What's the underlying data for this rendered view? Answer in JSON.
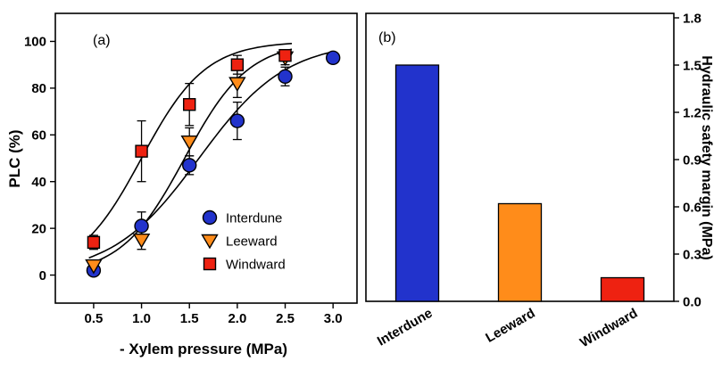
{
  "figure": {
    "background": "#ffffff"
  },
  "chart_data": [
    {
      "type": "scatter",
      "panel": "a",
      "panel_label": "(a)",
      "xlabel": "- Xylem pressure (MPa)",
      "ylabel": "PLC (%)",
      "xlim": [
        0.1,
        3.25
      ],
      "ylim": [
        -12,
        112
      ],
      "xticks": {
        "values": [
          0.5,
          1.0,
          1.5,
          2.0,
          2.5,
          3.0
        ],
        "labels": [
          "0.5",
          "1.0",
          "1.5",
          "2.0",
          "2.5",
          "3.0"
        ]
      },
      "yticks": {
        "values": [
          0,
          20,
          40,
          60,
          80,
          100
        ],
        "labels": [
          "0",
          "20",
          "40",
          "60",
          "80",
          "100"
        ]
      },
      "series": [
        {
          "name": "Interdune",
          "marker": "circle",
          "color": "#2233cc",
          "x": [
            0.5,
            1.0,
            1.5,
            2.0,
            2.5,
            3.0
          ],
          "y": [
            2,
            21,
            47,
            66,
            85,
            93
          ],
          "yerr": [
            2,
            6,
            4,
            8,
            4,
            2
          ],
          "fit": {
            "x0": 1.6,
            "k": 2.2,
            "xmin": 0.45,
            "xmax": 3.0
          }
        },
        {
          "name": "Leeward",
          "marker": "triangle-down",
          "color": "#ff8c1a",
          "x": [
            0.5,
            1.0,
            1.5,
            2.0,
            2.5
          ],
          "y": [
            4,
            15,
            57,
            82,
            93
          ],
          "yerr": [
            2,
            4,
            6,
            6,
            3
          ],
          "fit": {
            "x0": 1.45,
            "k": 3.0,
            "xmin": 0.45,
            "xmax": 2.6
          }
        },
        {
          "name": "Windward",
          "marker": "square",
          "color": "#ee2211",
          "x": [
            0.5,
            1.0,
            1.5,
            2.0,
            2.5
          ],
          "y": [
            14,
            53,
            73,
            90,
            94
          ],
          "yerr": [
            3,
            13,
            9,
            4,
            2
          ],
          "fit": {
            "x0": 1.0,
            "k": 3.0,
            "xmin": 0.45,
            "xmax": 2.6
          }
        }
      ],
      "legend": {
        "items": [
          "Interdune",
          "Leeward",
          "Windward"
        ],
        "position": "inside-lower-right"
      },
      "grid": false
    },
    {
      "type": "bar",
      "panel": "b",
      "panel_label": "(b)",
      "ylabel": "Hydraulic safety margin (MPa)",
      "categories": [
        "Interdune",
        "Leeward",
        "Windward"
      ],
      "values": [
        1.5,
        0.62,
        0.15
      ],
      "colors": [
        "#2233cc",
        "#ff8c1a",
        "#ee2211"
      ],
      "ylim": [
        0,
        1.8
      ],
      "yticks": {
        "values": [
          0.0,
          0.3,
          0.6,
          0.9,
          1.2,
          1.5,
          1.8
        ],
        "labels": [
          "0.0",
          "0.3",
          "0.6",
          "0.9",
          "1.2",
          "1.5",
          "1.8"
        ]
      },
      "y_axis_side": "right",
      "grid": false
    }
  ]
}
